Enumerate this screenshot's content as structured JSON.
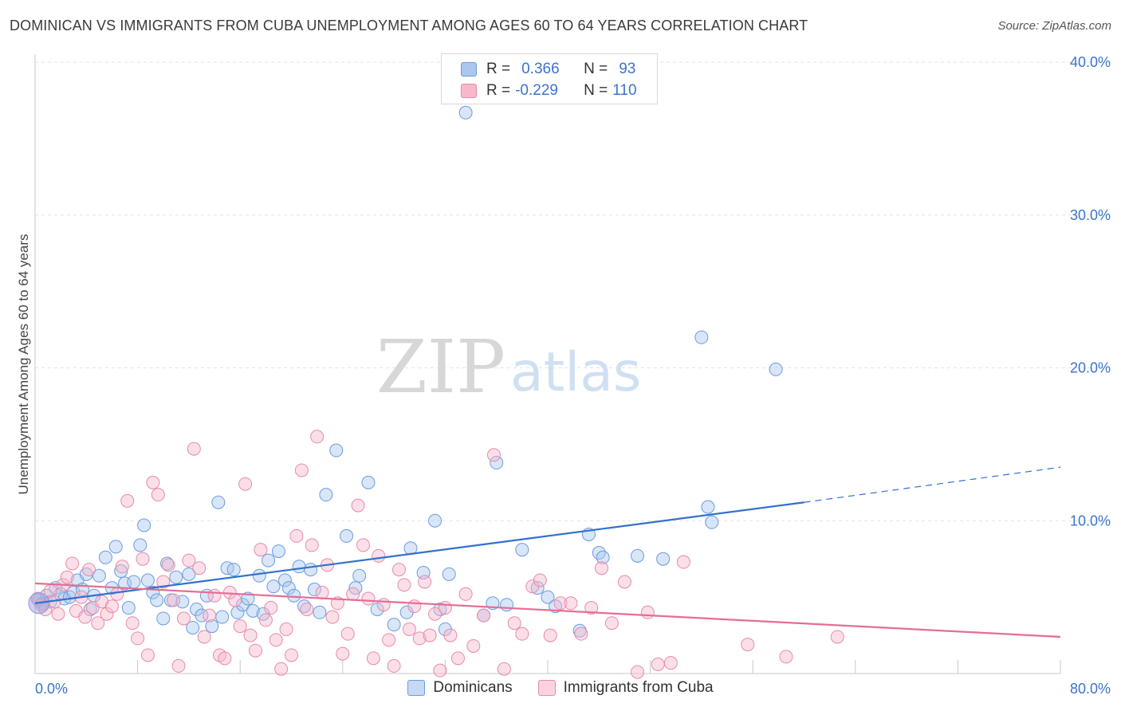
{
  "title": "DOMINICAN VS IMMIGRANTS FROM CUBA UNEMPLOYMENT AMONG AGES 60 TO 64 YEARS CORRELATION CHART",
  "source": "Source: ZipAtlas.com",
  "watermark": {
    "zip": "ZIP",
    "atlas": "atlas"
  },
  "legend": {
    "rows": [
      {
        "r_label": "R =",
        "r_value": "0.366",
        "n_label": "N =",
        "n_value": "93",
        "color": "#a8c8f0",
        "border": "#6b9be0"
      },
      {
        "r_label": "R =",
        "r_value": "-0.229",
        "n_label": "N =",
        "n_value": "110",
        "color": "#f7b8cb",
        "border": "#e88aa6"
      }
    ]
  },
  "bottom_legend": [
    {
      "label": "Dominicans",
      "color": "#c5d9f5",
      "border": "#6b9be0"
    },
    {
      "label": "Immigrants from Cuba",
      "color": "#fbd3df",
      "border": "#e88aa6"
    }
  ],
  "chart_data": {
    "type": "scatter",
    "title": "DOMINICAN VS IMMIGRANTS FROM CUBA UNEMPLOYMENT AMONG AGES 60 TO 64 YEARS CORRELATION CHART",
    "xlabel": "",
    "ylabel": "Unemployment Among Ages 60 to 64 years",
    "xlim": [
      0,
      80
    ],
    "ylim": [
      0,
      40
    ],
    "x_tick_labels": [
      "0.0%",
      "80.0%"
    ],
    "y_ticks": [
      10,
      20,
      30,
      40
    ],
    "y_tick_labels": [
      "10.0%",
      "20.0%",
      "30.0%",
      "40.0%"
    ],
    "grid": true,
    "legend_position": "top-center",
    "series": [
      {
        "name": "Dominicans",
        "color": "#6b9be0",
        "fill": "rgba(168,200,240,0.45)",
        "trend": {
          "x": [
            0,
            60
          ],
          "y": [
            4.6,
            11.2
          ],
          "dashed_to": [
            80,
            13.5
          ],
          "color": "#3270cc"
        },
        "points": [
          [
            0.3,
            4.8
          ],
          [
            0.6,
            4.6
          ],
          [
            0.9,
            5.1
          ],
          [
            1.2,
            4.7
          ],
          [
            1.6,
            5.6
          ],
          [
            2,
            5.2
          ],
          [
            2.3,
            4.9
          ],
          [
            2.7,
            5.0
          ],
          [
            3,
            5.3
          ],
          [
            3.3,
            6.1
          ],
          [
            3.7,
            5.5
          ],
          [
            4,
            6.5
          ],
          [
            4.3,
            4.2
          ],
          [
            4.6,
            5.1
          ],
          [
            5,
            6.4
          ],
          [
            5.5,
            7.6
          ],
          [
            6,
            5.6
          ],
          [
            6.3,
            8.3
          ],
          [
            6.7,
            6.7
          ],
          [
            7,
            5.9
          ],
          [
            7.3,
            4.3
          ],
          [
            7.7,
            6.0
          ],
          [
            8.2,
            8.4
          ],
          [
            8.5,
            9.7
          ],
          [
            8.8,
            6.1
          ],
          [
            9.2,
            5.3
          ],
          [
            9.5,
            4.8
          ],
          [
            10,
            3.6
          ],
          [
            10.3,
            7.2
          ],
          [
            10.6,
            4.8
          ],
          [
            11,
            6.3
          ],
          [
            11.5,
            4.7
          ],
          [
            12,
            6.5
          ],
          [
            12.3,
            3.0
          ],
          [
            12.6,
            4.2
          ],
          [
            13,
            3.8
          ],
          [
            13.4,
            5.1
          ],
          [
            13.8,
            3.1
          ],
          [
            14.3,
            11.2
          ],
          [
            14.6,
            3.7
          ],
          [
            15,
            6.9
          ],
          [
            15.5,
            6.8
          ],
          [
            15.8,
            4.0
          ],
          [
            16.2,
            4.5
          ],
          [
            16.6,
            4.9
          ],
          [
            17,
            4.1
          ],
          [
            17.5,
            6.4
          ],
          [
            17.8,
            3.9
          ],
          [
            18.2,
            7.4
          ],
          [
            18.6,
            5.7
          ],
          [
            19,
            8.0
          ],
          [
            19.5,
            6.1
          ],
          [
            19.8,
            5.6
          ],
          [
            20.2,
            5.1
          ],
          [
            20.6,
            7.0
          ],
          [
            21,
            4.4
          ],
          [
            21.5,
            6.8
          ],
          [
            21.8,
            5.5
          ],
          [
            22.2,
            4.0
          ],
          [
            22.7,
            11.7
          ],
          [
            23.5,
            14.6
          ],
          [
            24.3,
            9.0
          ],
          [
            25,
            5.6
          ],
          [
            25.3,
            6.4
          ],
          [
            26,
            12.5
          ],
          [
            26.7,
            4.2
          ],
          [
            28,
            3.2
          ],
          [
            29,
            4.0
          ],
          [
            29.3,
            8.2
          ],
          [
            30.3,
            6.6
          ],
          [
            31.2,
            10.0
          ],
          [
            31.6,
            4.2
          ],
          [
            32,
            2.9
          ],
          [
            32.3,
            6.5
          ],
          [
            33.6,
            36.7
          ],
          [
            35,
            3.8
          ],
          [
            35.7,
            4.6
          ],
          [
            36,
            13.8
          ],
          [
            36.8,
            4.5
          ],
          [
            38,
            8.1
          ],
          [
            39.2,
            5.6
          ],
          [
            40,
            5.0
          ],
          [
            40.6,
            4.4
          ],
          [
            42.5,
            2.8
          ],
          [
            43.2,
            9.1
          ],
          [
            44,
            7.9
          ],
          [
            44.3,
            7.6
          ],
          [
            47,
            7.7
          ],
          [
            49,
            7.5
          ],
          [
            52,
            22.0
          ],
          [
            52.5,
            10.9
          ],
          [
            52.8,
            9.9
          ],
          [
            57.8,
            19.9
          ]
        ]
      },
      {
        "name": "Immigrants from Cuba",
        "color": "#e88aa6",
        "fill": "rgba(247,184,203,0.45)",
        "trend": {
          "x": [
            0,
            80
          ],
          "y": [
            5.9,
            2.4
          ],
          "color": "#e56d93"
        },
        "points": [
          [
            0.2,
            4.9
          ],
          [
            0.5,
            4.5
          ],
          [
            0.8,
            4.2
          ],
          [
            1.2,
            5.4
          ],
          [
            1.5,
            4.7
          ],
          [
            1.8,
            3.9
          ],
          [
            2.2,
            5.8
          ],
          [
            2.5,
            6.3
          ],
          [
            2.9,
            7.2
          ],
          [
            3.2,
            4.1
          ],
          [
            3.6,
            5.0
          ],
          [
            3.9,
            3.7
          ],
          [
            4.2,
            6.8
          ],
          [
            4.5,
            4.3
          ],
          [
            4.9,
            3.3
          ],
          [
            5.2,
            4.7
          ],
          [
            5.6,
            3.9
          ],
          [
            6,
            4.4
          ],
          [
            6.4,
            5.2
          ],
          [
            6.8,
            7.0
          ],
          [
            7.2,
            11.3
          ],
          [
            7.6,
            3.3
          ],
          [
            8,
            2.3
          ],
          [
            8.4,
            7.5
          ],
          [
            8.8,
            1.2
          ],
          [
            9.2,
            12.5
          ],
          [
            9.6,
            11.7
          ],
          [
            10,
            6.0
          ],
          [
            10.4,
            7.1
          ],
          [
            10.8,
            4.8
          ],
          [
            11.2,
            0.5
          ],
          [
            11.6,
            3.6
          ],
          [
            12,
            7.4
          ],
          [
            12.4,
            14.7
          ],
          [
            12.8,
            6.9
          ],
          [
            13.2,
            2.4
          ],
          [
            13.6,
            3.8
          ],
          [
            14,
            5.1
          ],
          [
            14.4,
            1.2
          ],
          [
            14.8,
            1.0
          ],
          [
            15.2,
            5.3
          ],
          [
            15.6,
            4.8
          ],
          [
            16,
            3.1
          ],
          [
            16.4,
            12.4
          ],
          [
            16.8,
            2.5
          ],
          [
            17.2,
            1.5
          ],
          [
            17.6,
            8.1
          ],
          [
            18,
            3.5
          ],
          [
            18.4,
            4.3
          ],
          [
            18.8,
            2.2
          ],
          [
            19.2,
            0.3
          ],
          [
            19.6,
            2.9
          ],
          [
            20,
            1.2
          ],
          [
            20.4,
            9.0
          ],
          [
            20.8,
            13.3
          ],
          [
            21.2,
            4.2
          ],
          [
            21.6,
            8.4
          ],
          [
            22,
            15.5
          ],
          [
            22.4,
            5.3
          ],
          [
            22.8,
            7.1
          ],
          [
            23.2,
            3.7
          ],
          [
            23.6,
            4.6
          ],
          [
            24,
            1.3
          ],
          [
            24.4,
            2.6
          ],
          [
            24.8,
            5.2
          ],
          [
            25.2,
            11.0
          ],
          [
            25.6,
            8.4
          ],
          [
            26,
            4.9
          ],
          [
            26.4,
            1.0
          ],
          [
            26.8,
            7.7
          ],
          [
            27.2,
            4.5
          ],
          [
            27.6,
            2.2
          ],
          [
            28,
            0.5
          ],
          [
            28.4,
            6.8
          ],
          [
            28.8,
            5.8
          ],
          [
            29.2,
            2.9
          ],
          [
            29.6,
            4.4
          ],
          [
            30,
            2.3
          ],
          [
            30.4,
            6.0
          ],
          [
            30.8,
            2.5
          ],
          [
            31.2,
            3.9
          ],
          [
            31.6,
            0.2
          ],
          [
            32,
            4.3
          ],
          [
            32.4,
            2.5
          ],
          [
            33,
            1.0
          ],
          [
            33.6,
            5.2
          ],
          [
            34.2,
            1.8
          ],
          [
            35,
            3.8
          ],
          [
            35.8,
            14.3
          ],
          [
            36.6,
            0.3
          ],
          [
            37.4,
            3.3
          ],
          [
            38,
            2.6
          ],
          [
            38.8,
            5.7
          ],
          [
            39.4,
            6.1
          ],
          [
            40.2,
            2.5
          ],
          [
            41,
            4.6
          ],
          [
            41.8,
            4.6
          ],
          [
            42.6,
            2.6
          ],
          [
            43.4,
            4.3
          ],
          [
            44.2,
            6.9
          ],
          [
            45,
            3.3
          ],
          [
            46,
            6.0
          ],
          [
            47,
            0.1
          ],
          [
            47.8,
            4.0
          ],
          [
            48.6,
            0.6
          ],
          [
            49.6,
            0.7
          ],
          [
            50.6,
            7.3
          ],
          [
            55.6,
            1.9
          ],
          [
            58.6,
            1.1
          ],
          [
            62.6,
            2.4
          ]
        ]
      }
    ]
  }
}
